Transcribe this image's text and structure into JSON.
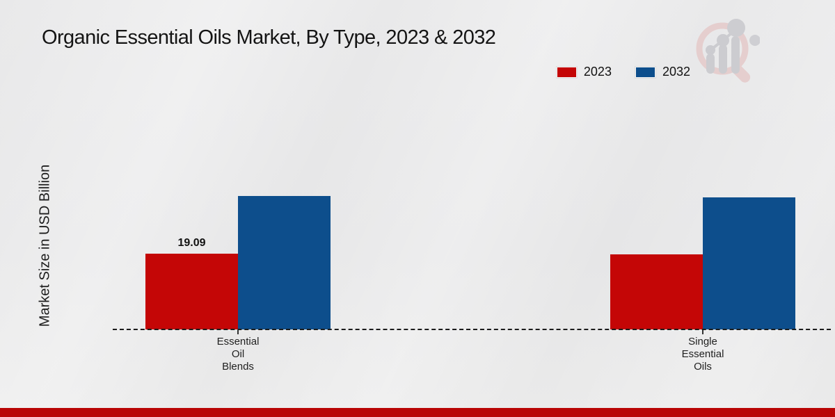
{
  "title": "Organic Essential Oils Market, By Type, 2023 & 2032",
  "y_axis_label": "Market Size in USD Billion",
  "legend": {
    "position": "top-right",
    "items": [
      {
        "label": "2023",
        "color": "#c40606"
      },
      {
        "label": "2032",
        "color": "#0d4e8c"
      }
    ]
  },
  "watermark_icon": "magnifier-bar-chart-logo",
  "footer_bar_color": "#b90505",
  "chart_data": {
    "type": "bar",
    "title": "Organic Essential Oils Market, By Type, 2023 & 2032",
    "categories": [
      "Essential\nOil\nBlends",
      "Single\nEssential\nOils"
    ],
    "series": [
      {
        "name": "2023",
        "color": "#c40606",
        "values": [
          19.09,
          19.0
        ]
      },
      {
        "name": "2032",
        "color": "#0d4e8c",
        "values": [
          33.6,
          33.3
        ]
      }
    ],
    "data_label": {
      "series_index": 0,
      "category_index": 0,
      "text": "19.09"
    },
    "xlabel": "",
    "ylabel": "Market Size in USD Billion",
    "ylim": [
      0,
      40
    ],
    "gridlines": false,
    "baseline_style": "dashed",
    "legend_position": "top-right"
  }
}
